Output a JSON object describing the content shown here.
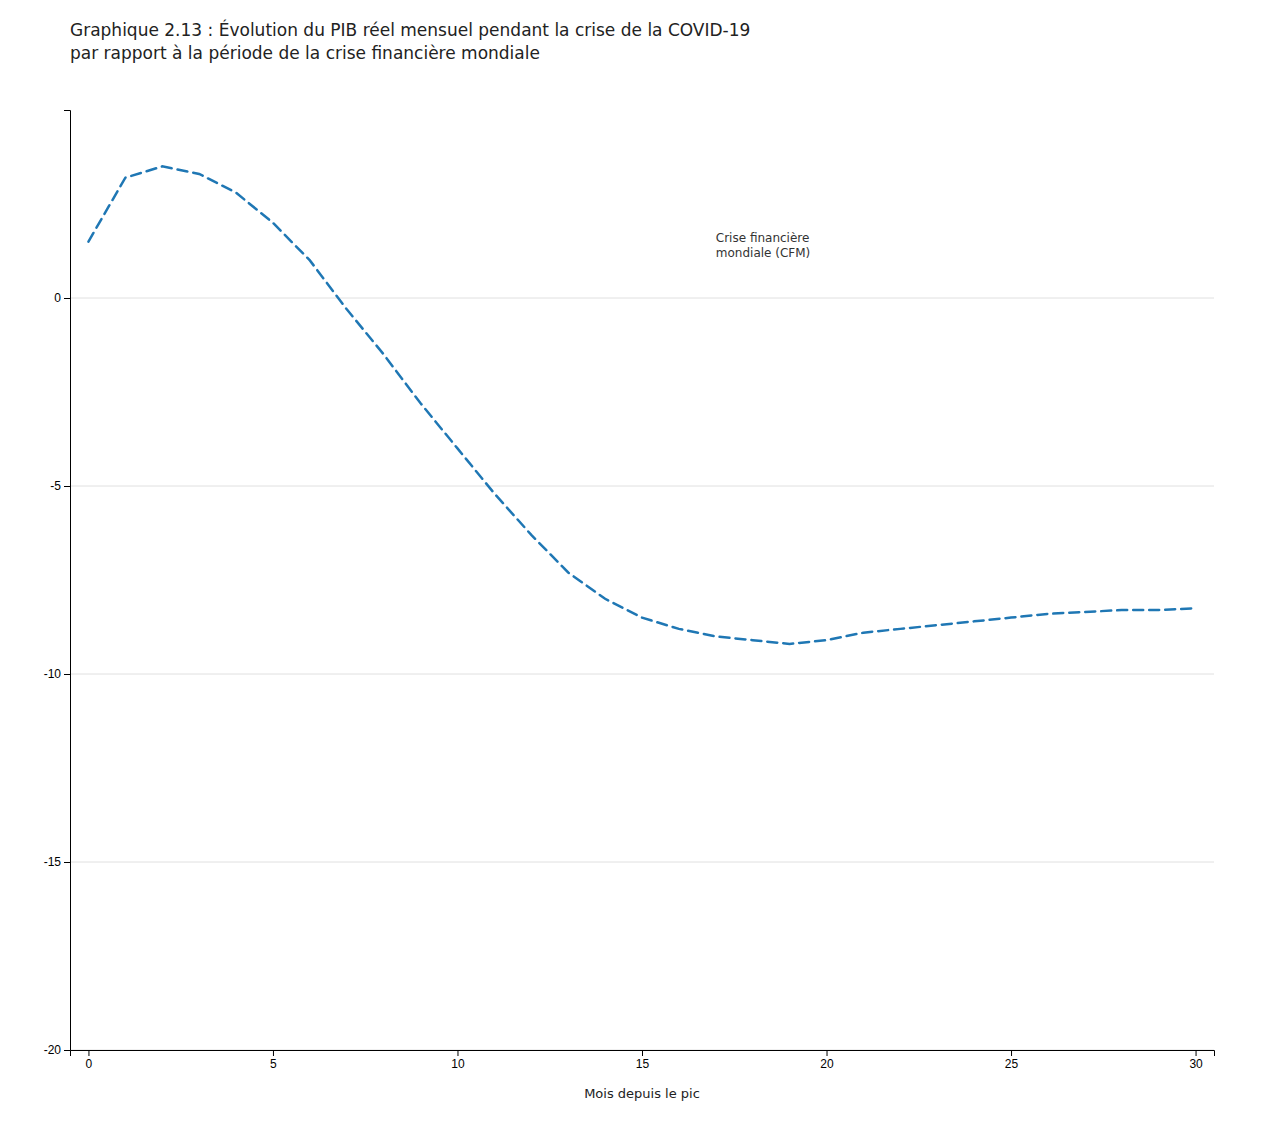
{
  "chart_data": {
    "type": "line",
    "title": "Graphique 2.13 : Évolution du PIB réel mensuel pendant la crise de la COVID-19\npar rapport à la période de la crise financière mondiale",
    "x_label": "Mois depuis le pic",
    "x": [
      0,
      1,
      2,
      3,
      4,
      5,
      6,
      7,
      8,
      9,
      10,
      11,
      12,
      13,
      14,
      15,
      16,
      17,
      18,
      19,
      20,
      21,
      22,
      23,
      24,
      25,
      26,
      27,
      28,
      29,
      30
    ],
    "values": [
      1.5,
      3.2,
      3.5,
      3.3,
      2.8,
      2.0,
      1.0,
      -0.3,
      -1.5,
      -2.8,
      -4.0,
      -5.2,
      -6.3,
      -7.3,
      -8.0,
      -8.5,
      -8.8,
      -9.0,
      -9.1,
      -9.2,
      -9.1,
      -8.9,
      -8.8,
      -8.7,
      -8.6,
      -8.5,
      -8.4,
      -8.35,
      -8.3,
      -8.3,
      -8.25
    ],
    "line_style": "dashed",
    "xlim": [
      -0.5,
      30.5
    ],
    "ylim": [
      -20,
      5
    ],
    "xticks": [
      0,
      5,
      10,
      15,
      20,
      25,
      30
    ],
    "yticks": [
      0,
      -5,
      -10,
      -15,
      -20
    ],
    "grid": "y",
    "annotations": [
      {
        "text": "Crise financière\nmondiale (CFM)",
        "x": 17,
        "y": 1.5
      }
    ]
  }
}
